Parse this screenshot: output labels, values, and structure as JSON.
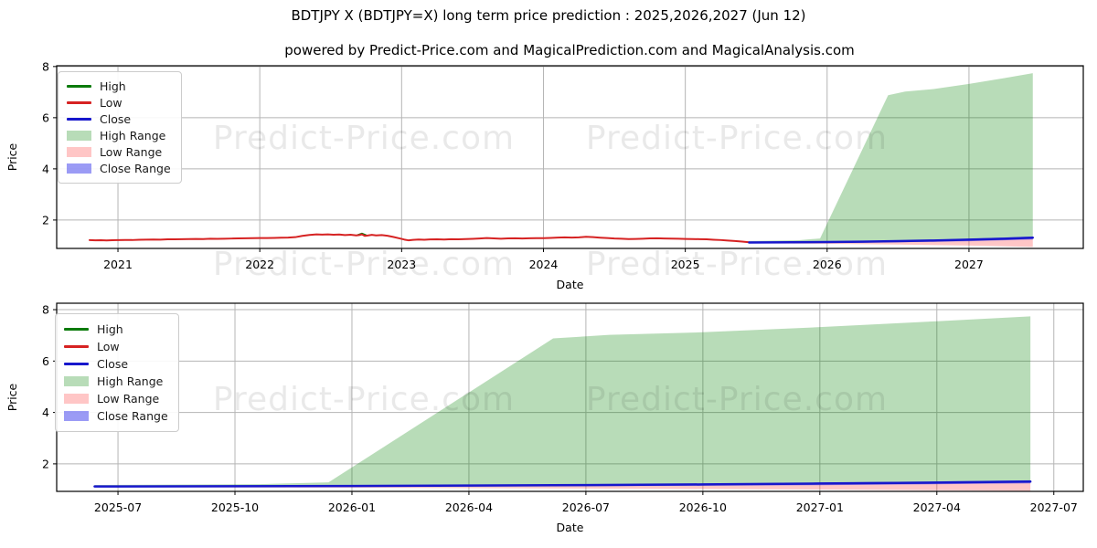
{
  "header": {
    "title": "BDTJPY X (BDTJPY=X) long term price prediction : 2025,2026,2027 (Jun 12)",
    "subtitle": "powered by Predict-Price.com and MagicalPrediction.com and MagicalAnalysis.com"
  },
  "watermark": {
    "text": "Predict-Price.com"
  },
  "colors": {
    "high_line": "#0b7a0b",
    "low_line": "#d62222",
    "close_line": "#1717cc",
    "high_range_fill": "rgba(0,128,0,0.28)",
    "low_range_fill": "rgba(255,45,45,0.27)",
    "close_range_fill": "rgba(55,55,235,0.5)",
    "grid": "#b5b5b5",
    "spine": "#000000",
    "watermark": "rgba(0,0,0,0.085)"
  },
  "legend": {
    "items": [
      {
        "label": "High",
        "type": "line",
        "colorKey": "high_line"
      },
      {
        "label": "Low",
        "type": "line",
        "colorKey": "low_line"
      },
      {
        "label": "Close",
        "type": "line",
        "colorKey": "close_line"
      },
      {
        "label": "High Range",
        "type": "patch",
        "colorKey": "high_range_fill"
      },
      {
        "label": "Low Range",
        "type": "patch",
        "colorKey": "low_range_fill"
      },
      {
        "label": "Close Range",
        "type": "patch",
        "colorKey": "close_range_fill"
      }
    ]
  },
  "chart_data": [
    {
      "id": "top-chart",
      "type": "line",
      "xlabel": "Date",
      "ylabel": "Price",
      "xlim": [
        2020.568,
        2027.806
      ],
      "ylim": [
        0.89,
        8.03
      ],
      "grid": true,
      "legend_position": "upper-left",
      "xticks": [
        {
          "v": 2021,
          "label": "2021"
        },
        {
          "v": 2022,
          "label": "2022"
        },
        {
          "v": 2023,
          "label": "2023"
        },
        {
          "v": 2024,
          "label": "2024"
        },
        {
          "v": 2025,
          "label": "2025"
        },
        {
          "v": 2026,
          "label": "2026"
        },
        {
          "v": 2027,
          "label": "2027"
        }
      ],
      "yticks": [
        {
          "v": 2,
          "label": "2"
        },
        {
          "v": 4,
          "label": "4"
        },
        {
          "v": 6,
          "label": "6"
        },
        {
          "v": 8,
          "label": "8"
        }
      ],
      "bands": [
        {
          "name": "high-range",
          "colorKey": "high_range_fill",
          "top": [
            [
              2025.45,
              1.18
            ],
            [
              2025.8,
              1.21
            ],
            [
              2025.95,
              1.28
            ],
            [
              2026.43,
              6.88
            ],
            [
              2026.55,
              7.02
            ],
            [
              2026.75,
              7.12
            ],
            [
              2027.0,
              7.32
            ],
            [
              2027.25,
              7.55
            ],
            [
              2027.45,
              7.74
            ]
          ],
          "bottom": [
            [
              2025.45,
              1.13
            ],
            [
              2026.0,
              1.15
            ],
            [
              2026.5,
              1.18
            ],
            [
              2027.0,
              1.24
            ],
            [
              2027.45,
              1.3
            ]
          ]
        },
        {
          "name": "low-range",
          "colorKey": "low_range_fill",
          "top": [
            [
              2025.45,
              1.12
            ],
            [
              2026.0,
              1.14
            ],
            [
              2026.5,
              1.175
            ],
            [
              2027.0,
              1.235
            ],
            [
              2027.45,
              1.31
            ]
          ],
          "bottom": [
            [
              2025.45,
              1.09
            ],
            [
              2026.0,
              1.07
            ],
            [
              2026.5,
              1.04
            ],
            [
              2027.0,
              1.0
            ],
            [
              2027.45,
              0.95
            ]
          ]
        },
        {
          "name": "close-range",
          "colorKey": "close_range_fill",
          "top": [
            [
              2025.45,
              1.15
            ],
            [
              2026.0,
              1.17
            ],
            [
              2026.5,
              1.2
            ],
            [
              2027.0,
              1.27
            ],
            [
              2027.45,
              1.36
            ]
          ],
          "bottom": [
            [
              2025.45,
              1.1
            ],
            [
              2026.0,
              1.11
            ],
            [
              2026.5,
              1.13
            ],
            [
              2027.0,
              1.17
            ],
            [
              2027.45,
              1.24
            ]
          ]
        }
      ],
      "series": [
        {
          "name": "high-history",
          "colorKey": "high_line",
          "width": 2,
          "points": [
            [
              2022.69,
              1.41
            ],
            [
              2022.72,
              1.468
            ],
            [
              2022.75,
              1.4
            ]
          ]
        },
        {
          "name": "low-history",
          "colorKey": "low_line",
          "width": 2,
          "points": [
            [
              2020.8,
              1.215
            ],
            [
              2020.84,
              1.205
            ],
            [
              2020.88,
              1.21
            ],
            [
              2020.92,
              1.203
            ],
            [
              2020.96,
              1.212
            ],
            [
              2021.0,
              1.215
            ],
            [
              2021.05,
              1.222
            ],
            [
              2021.1,
              1.218
            ],
            [
              2021.15,
              1.228
            ],
            [
              2021.2,
              1.232
            ],
            [
              2021.25,
              1.238
            ],
            [
              2021.3,
              1.232
            ],
            [
              2021.35,
              1.245
            ],
            [
              2021.4,
              1.248
            ],
            [
              2021.45,
              1.252
            ],
            [
              2021.5,
              1.255
            ],
            [
              2021.55,
              1.262
            ],
            [
              2021.6,
              1.258
            ],
            [
              2021.65,
              1.268
            ],
            [
              2021.7,
              1.265
            ],
            [
              2021.75,
              1.27
            ],
            [
              2021.8,
              1.276
            ],
            [
              2021.85,
              1.282
            ],
            [
              2021.9,
              1.286
            ],
            [
              2021.95,
              1.292
            ],
            [
              2022.0,
              1.298
            ],
            [
              2022.05,
              1.295
            ],
            [
              2022.1,
              1.302
            ],
            [
              2022.15,
              1.308
            ],
            [
              2022.2,
              1.315
            ],
            [
              2022.25,
              1.33
            ],
            [
              2022.3,
              1.38
            ],
            [
              2022.35,
              1.415
            ],
            [
              2022.4,
              1.438
            ],
            [
              2022.44,
              1.428
            ],
            [
              2022.48,
              1.44
            ],
            [
              2022.52,
              1.425
            ],
            [
              2022.56,
              1.435
            ],
            [
              2022.6,
              1.412
            ],
            [
              2022.64,
              1.424
            ],
            [
              2022.68,
              1.4
            ],
            [
              2022.7,
              1.412
            ],
            [
              2022.72,
              1.44
            ],
            [
              2022.74,
              1.38
            ],
            [
              2022.76,
              1.395
            ],
            [
              2022.79,
              1.42
            ],
            [
              2022.82,
              1.398
            ],
            [
              2022.86,
              1.412
            ],
            [
              2022.9,
              1.385
            ],
            [
              2022.94,
              1.34
            ],
            [
              2022.98,
              1.29
            ],
            [
              2023.02,
              1.235
            ],
            [
              2023.05,
              1.205
            ],
            [
              2023.08,
              1.225
            ],
            [
              2023.12,
              1.24
            ],
            [
              2023.16,
              1.228
            ],
            [
              2023.2,
              1.242
            ],
            [
              2023.25,
              1.248
            ],
            [
              2023.3,
              1.24
            ],
            [
              2023.35,
              1.252
            ],
            [
              2023.4,
              1.246
            ],
            [
              2023.45,
              1.258
            ],
            [
              2023.5,
              1.265
            ],
            [
              2023.55,
              1.278
            ],
            [
              2023.6,
              1.295
            ],
            [
              2023.65,
              1.282
            ],
            [
              2023.7,
              1.27
            ],
            [
              2023.75,
              1.282
            ],
            [
              2023.8,
              1.288
            ],
            [
              2023.85,
              1.278
            ],
            [
              2023.9,
              1.288
            ],
            [
              2023.95,
              1.292
            ],
            [
              2024.0,
              1.292
            ],
            [
              2024.05,
              1.3
            ],
            [
              2024.1,
              1.312
            ],
            [
              2024.15,
              1.322
            ],
            [
              2024.2,
              1.316
            ],
            [
              2024.25,
              1.324
            ],
            [
              2024.3,
              1.345
            ],
            [
              2024.35,
              1.33
            ],
            [
              2024.4,
              1.31
            ],
            [
              2024.45,
              1.295
            ],
            [
              2024.5,
              1.278
            ],
            [
              2024.55,
              1.268
            ],
            [
              2024.6,
              1.255
            ],
            [
              2024.65,
              1.262
            ],
            [
              2024.7,
              1.27
            ],
            [
              2024.75,
              1.282
            ],
            [
              2024.8,
              1.288
            ],
            [
              2024.85,
              1.278
            ],
            [
              2024.9,
              1.272
            ],
            [
              2024.95,
              1.268
            ],
            [
              2025.0,
              1.262
            ],
            [
              2025.05,
              1.258
            ],
            [
              2025.1,
              1.252
            ],
            [
              2025.15,
              1.245
            ],
            [
              2025.2,
              1.23
            ],
            [
              2025.25,
              1.218
            ],
            [
              2025.3,
              1.198
            ],
            [
              2025.35,
              1.178
            ],
            [
              2025.4,
              1.158
            ],
            [
              2025.45,
              1.13
            ]
          ]
        },
        {
          "name": "close-forecast",
          "colorKey": "close_line",
          "width": 2.5,
          "points": [
            [
              2025.45,
              1.12
            ],
            [
              2025.75,
              1.13
            ],
            [
              2026.0,
              1.14
            ],
            [
              2026.25,
              1.155
            ],
            [
              2026.5,
              1.175
            ],
            [
              2026.75,
              1.2
            ],
            [
              2027.0,
              1.235
            ],
            [
              2027.25,
              1.27
            ],
            [
              2027.45,
              1.31
            ]
          ]
        }
      ]
    },
    {
      "id": "bottom-chart",
      "type": "line",
      "xlabel": "Date",
      "ylabel": "Price",
      "xlim": [
        2025.369,
        2027.563
      ],
      "ylim": [
        0.93,
        8.25
      ],
      "grid": true,
      "legend_position": "upper-left",
      "xticks": [
        {
          "v": 2025.5,
          "label": "2025-07"
        },
        {
          "v": 2025.75,
          "label": "2025-10"
        },
        {
          "v": 2026.0,
          "label": "2026-01"
        },
        {
          "v": 2026.25,
          "label": "2026-04"
        },
        {
          "v": 2026.5,
          "label": "2026-07"
        },
        {
          "v": 2026.75,
          "label": "2026-10"
        },
        {
          "v": 2027.0,
          "label": "2027-01"
        },
        {
          "v": 2027.25,
          "label": "2027-04"
        },
        {
          "v": 2027.5,
          "label": "2027-07"
        }
      ],
      "yticks": [
        {
          "v": 2,
          "label": "2"
        },
        {
          "v": 4,
          "label": "4"
        },
        {
          "v": 6,
          "label": "6"
        },
        {
          "v": 8,
          "label": "8"
        }
      ],
      "bands": [
        {
          "name": "high-range",
          "colorKey": "high_range_fill",
          "top": [
            [
              2025.45,
              1.18
            ],
            [
              2025.8,
              1.21
            ],
            [
              2025.95,
              1.28
            ],
            [
              2026.43,
              6.88
            ],
            [
              2026.55,
              7.02
            ],
            [
              2026.75,
              7.12
            ],
            [
              2027.0,
              7.32
            ],
            [
              2027.25,
              7.55
            ],
            [
              2027.45,
              7.74
            ]
          ],
          "bottom": [
            [
              2025.45,
              1.13
            ],
            [
              2026.0,
              1.15
            ],
            [
              2026.5,
              1.18
            ],
            [
              2027.0,
              1.24
            ],
            [
              2027.45,
              1.3
            ]
          ]
        },
        {
          "name": "low-range",
          "colorKey": "low_range_fill",
          "top": [
            [
              2025.45,
              1.12
            ],
            [
              2026.0,
              1.14
            ],
            [
              2026.5,
              1.175
            ],
            [
              2027.0,
              1.235
            ],
            [
              2027.45,
              1.31
            ]
          ],
          "bottom": [
            [
              2025.45,
              1.09
            ],
            [
              2026.0,
              1.07
            ],
            [
              2026.5,
              1.04
            ],
            [
              2027.0,
              1.0
            ],
            [
              2027.45,
              0.95
            ]
          ]
        },
        {
          "name": "close-range",
          "colorKey": "close_range_fill",
          "top": [
            [
              2025.45,
              1.15
            ],
            [
              2026.0,
              1.17
            ],
            [
              2026.5,
              1.2
            ],
            [
              2027.0,
              1.27
            ],
            [
              2027.45,
              1.36
            ]
          ],
          "bottom": [
            [
              2025.45,
              1.1
            ],
            [
              2026.0,
              1.11
            ],
            [
              2026.5,
              1.13
            ],
            [
              2027.0,
              1.17
            ],
            [
              2027.45,
              1.24
            ]
          ]
        }
      ],
      "series": [
        {
          "name": "close-forecast",
          "colorKey": "close_line",
          "width": 2.5,
          "points": [
            [
              2025.45,
              1.12
            ],
            [
              2025.75,
              1.13
            ],
            [
              2026.0,
              1.14
            ],
            [
              2026.25,
              1.155
            ],
            [
              2026.5,
              1.175
            ],
            [
              2026.75,
              1.2
            ],
            [
              2027.0,
              1.235
            ],
            [
              2027.25,
              1.27
            ],
            [
              2027.45,
              1.31
            ]
          ]
        }
      ]
    }
  ]
}
